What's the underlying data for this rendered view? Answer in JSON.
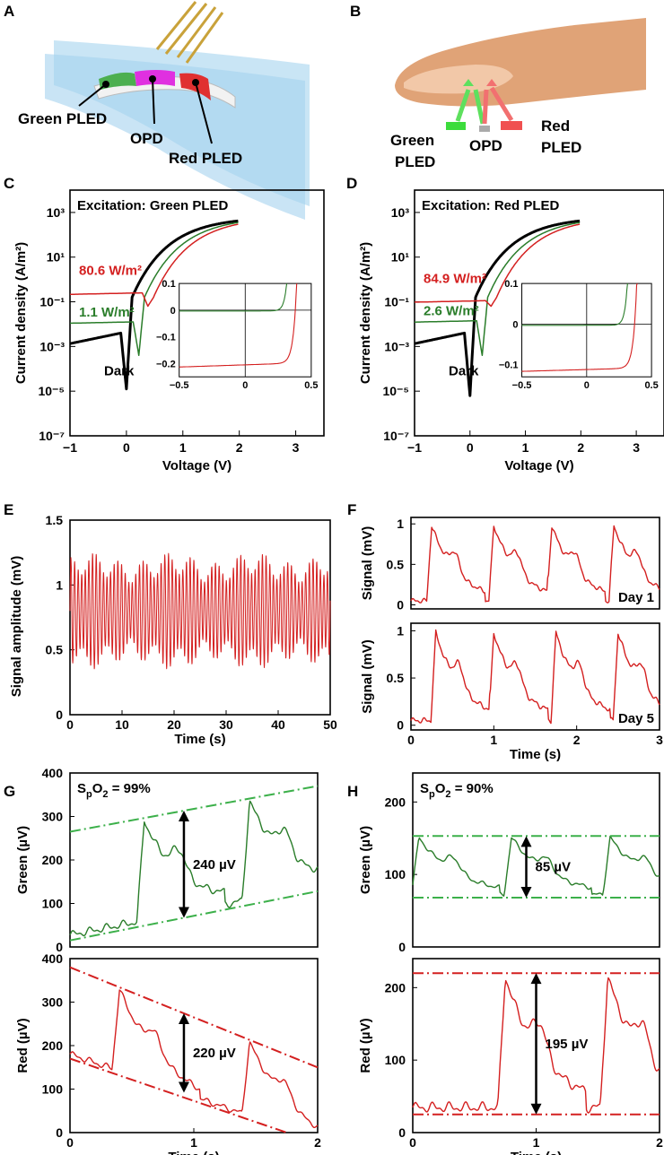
{
  "colors": {
    "green": "#2a7d2a",
    "red": "#d42020",
    "black": "#000000",
    "dashgreen": "#3cb04a",
    "dashred": "#d42020"
  },
  "panel_labels": [
    "A",
    "B",
    "C",
    "D",
    "E",
    "F",
    "G",
    "H"
  ],
  "illustration_a": {
    "labels": [
      "Green PLED",
      "OPD",
      "Red PLED"
    ]
  },
  "illustration_b": {
    "labels": [
      "Green",
      "PLED",
      "OPD",
      "Red",
      "PLED"
    ]
  },
  "chart_data": [
    {
      "id": "C",
      "type": "line",
      "title": "Excitation: Green PLED",
      "xlabel": "Voltage (V)",
      "ylabel": "Current density (A/m²)",
      "xlim": [
        -1,
        3.5
      ],
      "ylim_log10": [
        -7,
        4
      ],
      "xticks": [
        -1,
        0,
        1,
        2,
        3
      ],
      "yticks": [
        "10³",
        "10¹",
        "10⁻¹",
        "10⁻³",
        "10⁻⁵",
        "10⁻⁷"
      ],
      "series": [
        {
          "name": "80.6 W/m²",
          "color": "red",
          "min_voltage": 0.38,
          "plateau": -0.6
        },
        {
          "name": "1.1 W/m²",
          "color": "green",
          "min_voltage": 0.22,
          "plateau": -1.9
        },
        {
          "name": "Dark",
          "color": "black",
          "min_voltage": 0.0,
          "min_log": -4.9
        }
      ],
      "annotations": [
        "80.6 W/m²",
        "1.1 W/m²",
        "Dark"
      ],
      "inset": {
        "xlim": [
          -0.5,
          0.5
        ],
        "ylim": [
          -0.25,
          0.1
        ],
        "xticks": [
          "-0.5",
          "0",
          "0.5"
        ],
        "yticks": [
          "0.1",
          "0",
          "-0.1",
          "-0.2"
        ],
        "series": [
          {
            "color": "red",
            "jsc": -0.205,
            "voc": 0.38
          },
          {
            "color": "green",
            "jsc": -0.003,
            "voc": 0.3
          }
        ]
      }
    },
    {
      "id": "D",
      "type": "line",
      "title": "Excitation: Red PLED",
      "xlabel": "Voltage (V)",
      "ylabel": "Current density (A/m²)",
      "xlim": [
        -1,
        3.5
      ],
      "ylim_log10": [
        -7,
        4
      ],
      "xticks": [
        -1,
        0,
        1,
        2,
        3
      ],
      "yticks": [
        "10³",
        "10¹",
        "10⁻¹",
        "10⁻³",
        "10⁻⁵",
        "10⁻⁷"
      ],
      "series": [
        {
          "name": "84.9 W/m²",
          "color": "red",
          "min_voltage": 0.38,
          "plateau": -0.95
        },
        {
          "name": "2.6 W/m²",
          "color": "green",
          "min_voltage": 0.22,
          "plateau": -1.85
        },
        {
          "name": "Dark",
          "color": "black",
          "min_voltage": 0.0,
          "min_log": -5.2
        }
      ],
      "annotations": [
        "84.9 W/m²",
        "2.6 W/m²",
        "Dark"
      ],
      "inset": {
        "xlim": [
          -0.5,
          0.5
        ],
        "ylim": [
          -0.13,
          0.1
        ],
        "xticks": [
          "-0.5",
          "0",
          "0.5"
        ],
        "yticks": [
          "0.1",
          "0",
          "-0.1"
        ],
        "series": [
          {
            "color": "red",
            "jsc": -0.112,
            "voc": 0.37
          },
          {
            "color": "green",
            "jsc": -0.003,
            "voc": 0.3
          }
        ]
      }
    },
    {
      "id": "E",
      "type": "line",
      "xlabel": "Time (s)",
      "ylabel": "Signal amplitude (mV)",
      "xlim": [
        0,
        50
      ],
      "ylim": [
        0,
        1.5
      ],
      "xticks": [
        "0",
        "10",
        "20",
        "30",
        "40",
        "50"
      ],
      "yticks": [
        "1.5",
        "1",
        "0.5",
        "0"
      ],
      "series": [
        {
          "name": "signal",
          "color": "red",
          "mean": 0.8,
          "amplitude": 0.33,
          "beats": 72
        }
      ]
    },
    {
      "id": "F1",
      "type": "line",
      "xlabel": "",
      "ylabel": "Signal (mV)",
      "annotation": "Day 1",
      "xlim": [
        0,
        3
      ],
      "ylim": [
        -0.05,
        1.08
      ],
      "yticks": [
        "1",
        "0.5",
        "0"
      ],
      "series": [
        {
          "color": "red",
          "peaks": [
            0.25,
            1.0,
            1.7,
            2.45
          ]
        }
      ]
    },
    {
      "id": "F2",
      "type": "line",
      "xlabel": "Time (s)",
      "ylabel": "Signal (mV)",
      "annotation": "Day 5",
      "xlim": [
        0,
        3
      ],
      "ylim": [
        -0.05,
        1.08
      ],
      "xticks": [
        "0",
        "1",
        "2",
        "3"
      ],
      "yticks": [
        "1",
        "0.5",
        "0"
      ],
      "series": [
        {
          "color": "red",
          "peaks": [
            0.3,
            1.0,
            1.75,
            2.5
          ]
        }
      ]
    },
    {
      "id": "G1",
      "type": "line",
      "title": "SpO2 = 99%",
      "ylabel": "Green (µV)",
      "xlim": [
        0,
        2
      ],
      "ylim": [
        0,
        400
      ],
      "yticks": [
        "400",
        "300",
        "200",
        "100",
        "0"
      ],
      "annotation": "240 µV",
      "series": [
        {
          "color": "green",
          "peaks": [
            0.6,
            1.45
          ]
        }
      ],
      "envelopes": {
        "upper": [
          [
            0,
            265
          ],
          [
            2,
            370
          ]
        ],
        "lower": [
          [
            0,
            15
          ],
          [
            2,
            128
          ]
        ]
      }
    },
    {
      "id": "G2",
      "type": "line",
      "xlabel": "Time (s)",
      "ylabel": "Red (µV)",
      "xlim": [
        0,
        2
      ],
      "ylim": [
        0,
        400
      ],
      "xticks": [
        "0",
        "1",
        "2"
      ],
      "yticks": [
        "400",
        "300",
        "200",
        "100",
        "0"
      ],
      "annotation": "220 µV",
      "series": [
        {
          "color": "red",
          "peaks": [
            0.4,
            1.45
          ]
        }
      ],
      "envelopes": {
        "upper": [
          [
            0,
            380
          ],
          [
            2,
            150
          ]
        ],
        "lower": [
          [
            0,
            170
          ],
          [
            1.75,
            0
          ]
        ]
      }
    },
    {
      "id": "H1",
      "type": "line",
      "title": "SpO2 = 90%",
      "ylabel": "Green (µV)",
      "xlim": [
        0,
        2
      ],
      "ylim": [
        0,
        240
      ],
      "yticks": [
        "200",
        "100",
        "0"
      ],
      "annotation": "85 µV",
      "series": [
        {
          "color": "green",
          "peaks": [
            0.05,
            0.8,
            1.6
          ]
        }
      ],
      "envelopes": {
        "upper": [
          [
            0,
            153
          ],
          [
            2,
            153
          ]
        ],
        "lower": [
          [
            0,
            68
          ],
          [
            2,
            68
          ]
        ]
      }
    },
    {
      "id": "H2",
      "type": "line",
      "xlabel": "Time (s)",
      "ylabel": "Red (µV)",
      "xlim": [
        0,
        2
      ],
      "ylim": [
        0,
        240
      ],
      "xticks": [
        "0",
        "1",
        "2"
      ],
      "yticks": [
        "200",
        "100",
        "0"
      ],
      "annotation": "195 µV",
      "series": [
        {
          "color": "red",
          "peaks": [
            0.75,
            1.58
          ]
        }
      ],
      "envelopes": {
        "upper": [
          [
            0,
            220
          ],
          [
            2,
            220
          ]
        ],
        "lower": [
          [
            0,
            25
          ],
          [
            2,
            25
          ]
        ]
      }
    }
  ]
}
